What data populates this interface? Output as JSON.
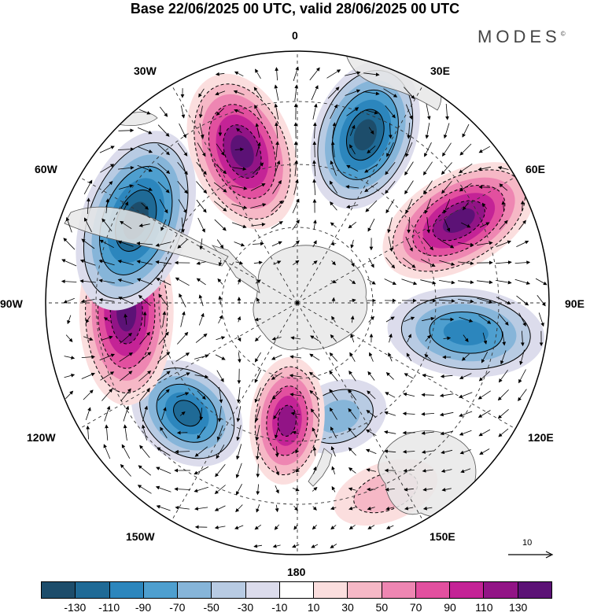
{
  "title": "Base 22/06/2025 00 UTC, valid 28/06/2025 00 UTC",
  "brand": "MODES",
  "brand_mark": "©",
  "longitude_labels": {
    "lon_0": "0",
    "lon_30e": "30E",
    "lon_60e": "60E",
    "lon_90e": "90E",
    "lon_120e": "120E",
    "lon_150e": "150E",
    "lon_180": "180",
    "lon_150w": "150W",
    "lon_120w": "120W",
    "lon_90w": "90W",
    "lon_60w": "60W",
    "lon_30w": "30W"
  },
  "reference_vector_label": "10",
  "projection": "south polar stereographic",
  "colorbar": {
    "colors": [
      "#1d4d6b",
      "#1f6a96",
      "#2c86bd",
      "#4e9fcf",
      "#86b5d9",
      "#b8cbe3",
      "#dcdcec",
      "#ffffff",
      "#fbdede",
      "#f6b8c6",
      "#ee86b2",
      "#e2509f",
      "#c42396",
      "#921486",
      "#5c1276"
    ],
    "tick_labels": [
      "-130",
      "-110",
      "-90",
      "-70",
      "-50",
      "-30",
      "-10",
      "10",
      "30",
      "50",
      "70",
      "90",
      "110",
      "130"
    ]
  },
  "anomaly_centers": [
    {
      "sign": "negative",
      "strength": 120,
      "longitude_label": "30E"
    },
    {
      "sign": "positive",
      "strength": 125,
      "longitude_label": "60E"
    },
    {
      "sign": "negative",
      "strength": 80,
      "longitude_label": "90E"
    },
    {
      "sign": "negative",
      "strength": 40,
      "longitude_label": "150E"
    },
    {
      "sign": "positive",
      "strength": 25,
      "longitude_label": "150E"
    },
    {
      "sign": "positive",
      "strength": 110,
      "longitude_label": "180"
    },
    {
      "sign": "negative",
      "strength": 115,
      "longitude_label": "150W"
    },
    {
      "sign": "positive",
      "strength": 130,
      "longitude_label": "90W"
    },
    {
      "sign": "negative",
      "strength": 130,
      "longitude_label": "60W"
    },
    {
      "sign": "positive",
      "strength": 125,
      "longitude_label": "30W"
    }
  ]
}
